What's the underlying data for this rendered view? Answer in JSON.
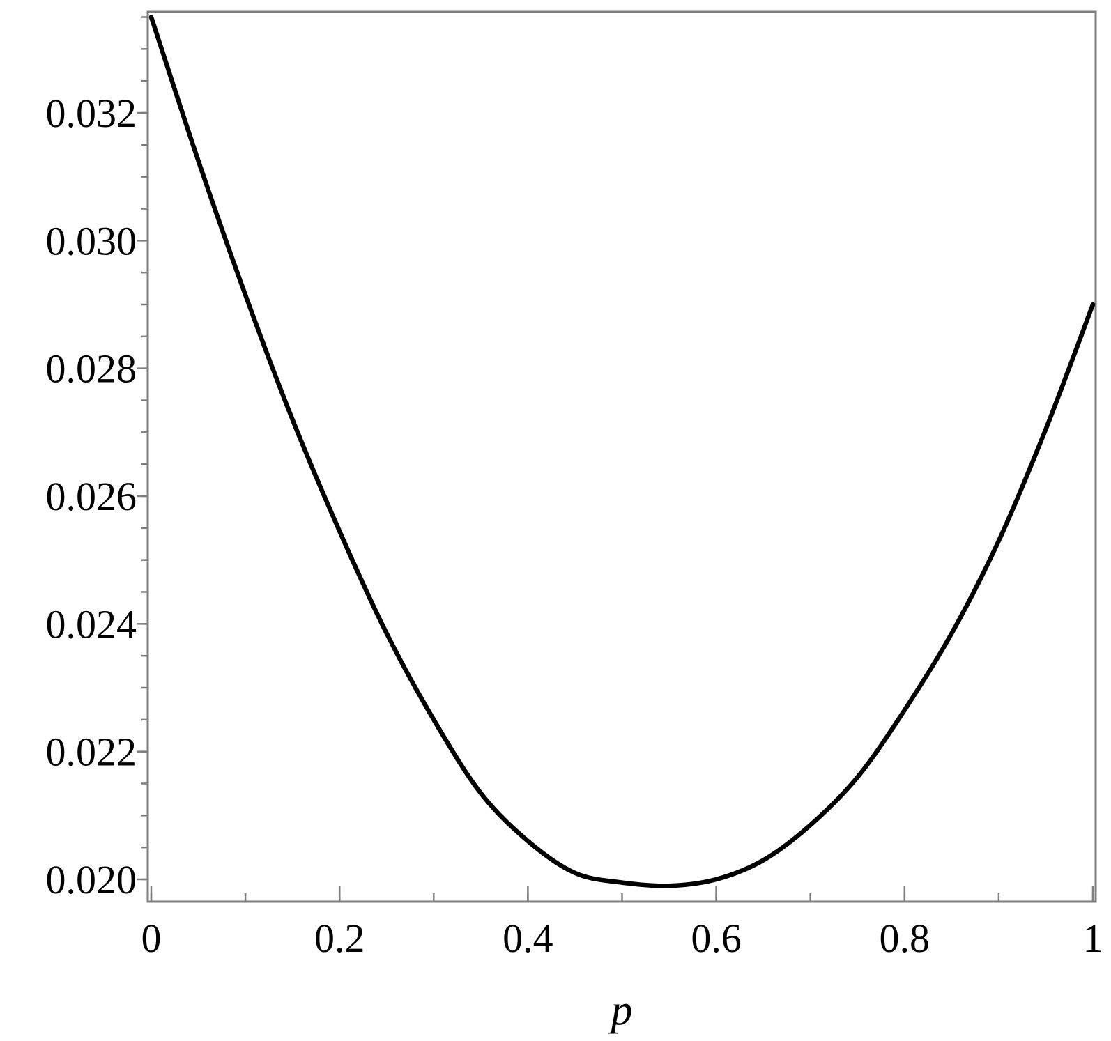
{
  "chart_data": {
    "type": "line",
    "title": "",
    "xlabel": "p",
    "ylabel": "",
    "xlim": [
      0,
      1
    ],
    "ylim": [
      0.0199,
      0.0335
    ],
    "grid": false,
    "legend": "none",
    "x_ticks": [
      0,
      0.2,
      0.4,
      0.6,
      0.8,
      1
    ],
    "x_tick_labels": [
      "0",
      "0.2",
      "0.4",
      "0.6",
      "0.8",
      "1"
    ],
    "x_minor_step": 0.1,
    "y_ticks": [
      0.02,
      0.022,
      0.024,
      0.026,
      0.028,
      0.03,
      0.032
    ],
    "y_tick_labels": [
      "0.020",
      "0.022",
      "0.024",
      "0.026",
      "0.028",
      "0.030",
      "0.032"
    ],
    "y_minor_step": 0.0005,
    "colors": {
      "line": "#000000",
      "frame": "#7f7f7f",
      "background": "#ffffff"
    },
    "series": [
      {
        "x": [
          0,
          0.05,
          0.1,
          0.15,
          0.2,
          0.25,
          0.3,
          0.35,
          0.4,
          0.45,
          0.5,
          0.55,
          0.6,
          0.65,
          0.7,
          0.75,
          0.8,
          0.85,
          0.9,
          0.95,
          1
        ],
        "y": [
          0.0335,
          0.03125,
          0.02915,
          0.0272,
          0.02545,
          0.02385,
          0.0225,
          0.02135,
          0.0206,
          0.0201,
          0.01995,
          0.0199,
          0.02,
          0.0203,
          0.02085,
          0.0216,
          0.02265,
          0.02385,
          0.0253,
          0.02705,
          0.029
        ]
      }
    ]
  }
}
